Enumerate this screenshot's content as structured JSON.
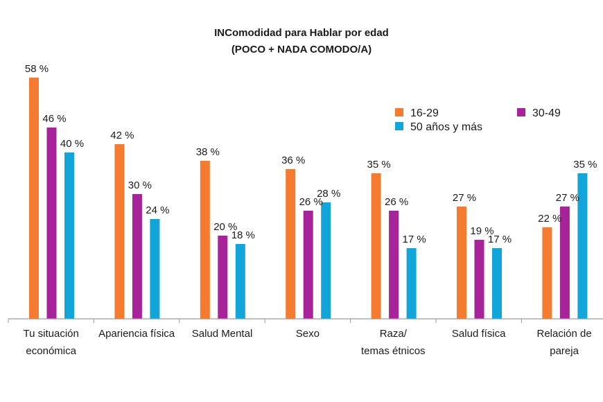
{
  "chart_data": {
    "type": "bar",
    "title": "INComodidad para Hablar por edad",
    "subtitle": "(POCO + NADA COMODO/A)",
    "categories": [
      [
        "Tu situación",
        "económica"
      ],
      [
        "Apariencia física"
      ],
      [
        "Salud Mental"
      ],
      [
        "Sexo"
      ],
      [
        "Raza/",
        "temas étnicos"
      ],
      [
        "Salud física"
      ],
      [
        "Relación de",
        "pareja"
      ]
    ],
    "series": [
      {
        "name": "16-29",
        "color": "#F47B30",
        "values": [
          58,
          42,
          38,
          36,
          35,
          27,
          22
        ]
      },
      {
        "name": "30-49",
        "color": "#A6239A",
        "values": [
          46,
          30,
          20,
          26,
          26,
          19,
          27
        ]
      },
      {
        "name": "50 años y más",
        "color": "#12A5D9",
        "values": [
          40,
          24,
          18,
          28,
          17,
          17,
          35
        ]
      }
    ],
    "value_suffix": " %",
    "ylim": [
      0,
      60
    ],
    "grid": false,
    "legend_position": "top-right"
  }
}
